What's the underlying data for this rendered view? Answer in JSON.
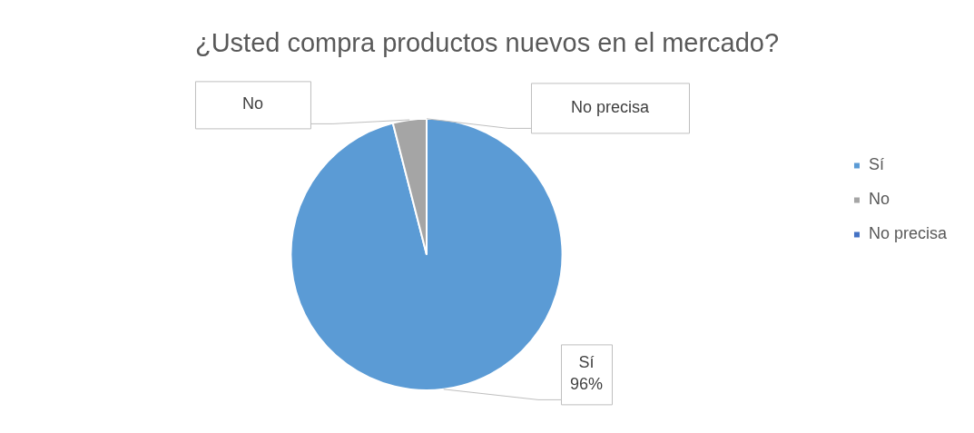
{
  "chart_data": {
    "type": "pie",
    "title": "¿Usted compra productos nuevos en el mercado?",
    "categories": [
      "Sí",
      "No",
      "No precisa"
    ],
    "values": [
      96,
      4,
      0
    ],
    "colors": [
      "#5b9bd5",
      "#a5a5a5",
      "#4472c4"
    ],
    "value_labels": [
      "96%",
      null,
      null
    ],
    "legend": "right"
  }
}
